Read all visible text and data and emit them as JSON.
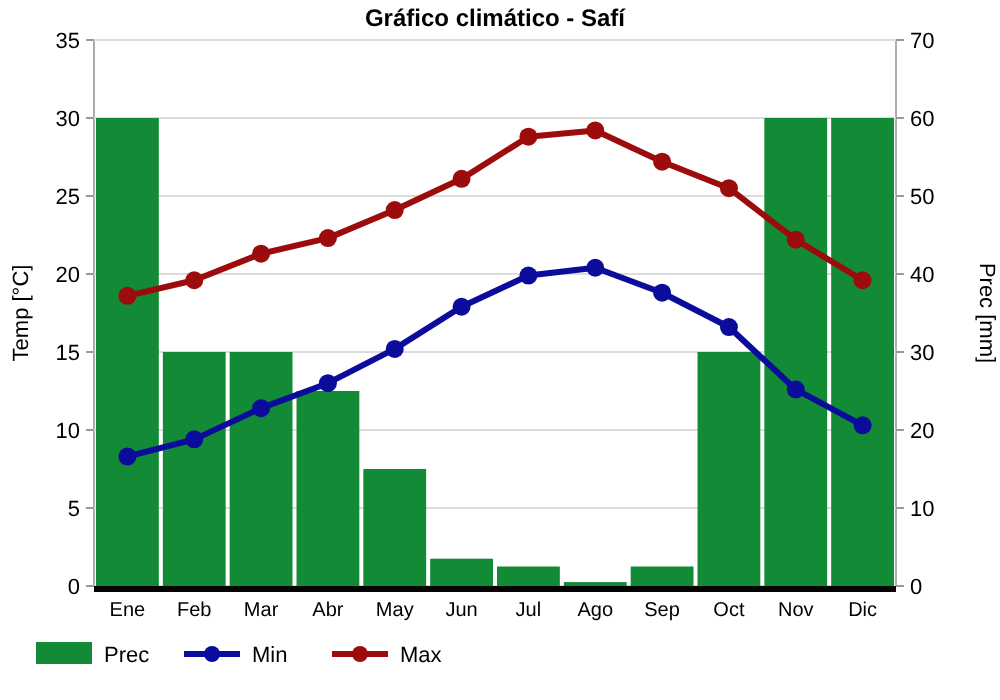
{
  "chart_data": {
    "type": "bar",
    "title": "Gráfico climático - Safí",
    "ylabel": "Temp [°C]",
    "y2label": "Prec [mm]",
    "categories": [
      "Ene",
      "Feb",
      "Mar",
      "Abr",
      "May",
      "Jun",
      "Jul",
      "Ago",
      "Sep",
      "Oct",
      "Nov",
      "Dic"
    ],
    "series": [
      {
        "name": "Prec",
        "axis": "y2",
        "color": "#138a36",
        "values": [
          60,
          30,
          30,
          25,
          15,
          3.5,
          2.5,
          0.5,
          2.5,
          30,
          60,
          60
        ]
      },
      {
        "name": "Min",
        "type": "line",
        "color": "#0c0c9c",
        "values": [
          8.3,
          9.4,
          11.4,
          13.0,
          15.2,
          17.9,
          19.9,
          20.4,
          18.8,
          16.6,
          12.6,
          10.3
        ]
      },
      {
        "name": "Max",
        "type": "line",
        "color": "#9c0c0c",
        "values": [
          18.6,
          19.6,
          21.3,
          22.3,
          24.1,
          26.1,
          28.8,
          29.2,
          27.2,
          25.5,
          22.2,
          19.6
        ]
      }
    ],
    "ylim": [
      0,
      35
    ],
    "yticks": [
      0,
      5,
      10,
      15,
      20,
      25,
      30,
      35
    ],
    "y2lim": [
      0,
      70
    ],
    "y2ticks": [
      0,
      10,
      20,
      30,
      40,
      50,
      60,
      70
    ],
    "grid": "y",
    "legend": "bottom",
    "marker": "circle",
    "line_style": "solid"
  }
}
